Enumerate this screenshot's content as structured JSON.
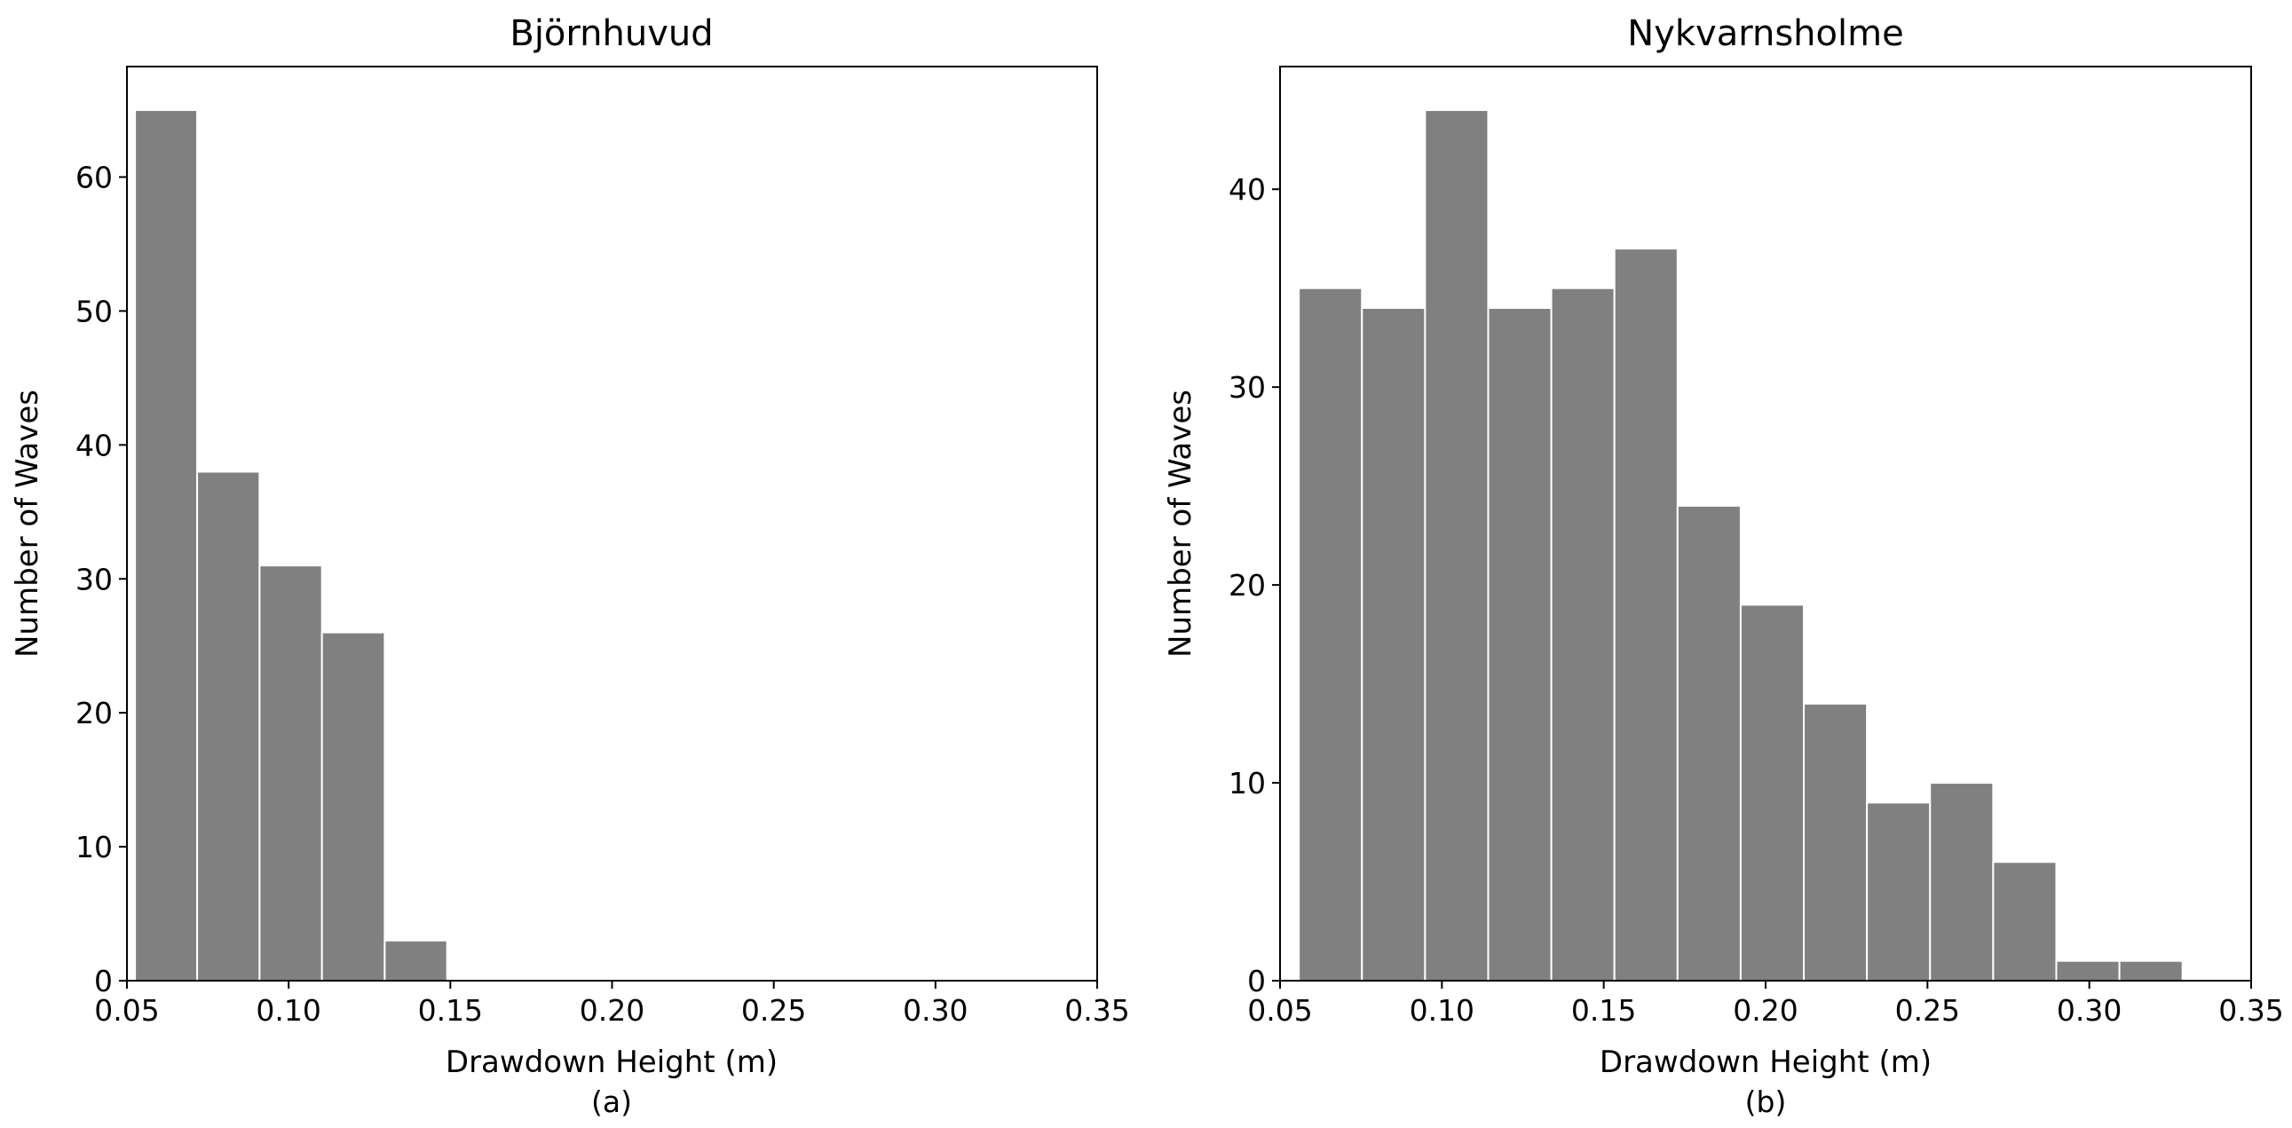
{
  "chart_data": [
    {
      "type": "bar",
      "title": "Björnhuvud",
      "xlabel": "Drawdown Height (m)",
      "ylabel": "Number of Waves",
      "sublabel": "(a)",
      "xlim": [
        0.05,
        0.35
      ],
      "ylim": [
        0,
        68.25
      ],
      "x_ticks": [
        "0.05",
        "0.10",
        "0.15",
        "0.20",
        "0.25",
        "0.30",
        "0.35"
      ],
      "y_ticks": [
        "0",
        "10",
        "20",
        "30",
        "40",
        "50",
        "60"
      ],
      "bin_edges": [
        0.0525,
        0.0717,
        0.091,
        0.1103,
        0.1297,
        0.149
      ],
      "values": [
        65,
        38,
        31,
        26,
        3
      ],
      "bar_color": "#808080",
      "grid": false
    },
    {
      "type": "bar",
      "title": "Nykvarnsholme",
      "xlabel": "Drawdown Height (m)",
      "ylabel": "Number of Waves",
      "sublabel": "(b)",
      "xlim": [
        0.05,
        0.35
      ],
      "ylim": [
        0,
        46.2
      ],
      "x_ticks": [
        "0.05",
        "0.10",
        "0.15",
        "0.20",
        "0.25",
        "0.30",
        "0.35"
      ],
      "y_ticks": [
        "0",
        "10",
        "20",
        "30",
        "40"
      ],
      "bin_edges": [
        0.0558,
        0.0753,
        0.0948,
        0.1143,
        0.1338,
        0.1533,
        0.1728,
        0.1923,
        0.2118,
        0.2313,
        0.2508,
        0.2703,
        0.2898,
        0.3093,
        0.3288
      ],
      "values": [
        35,
        34,
        44,
        34,
        35,
        37,
        24,
        19,
        14,
        9,
        10,
        6,
        1,
        1
      ],
      "bar_color": "#808080",
      "grid": false
    }
  ]
}
